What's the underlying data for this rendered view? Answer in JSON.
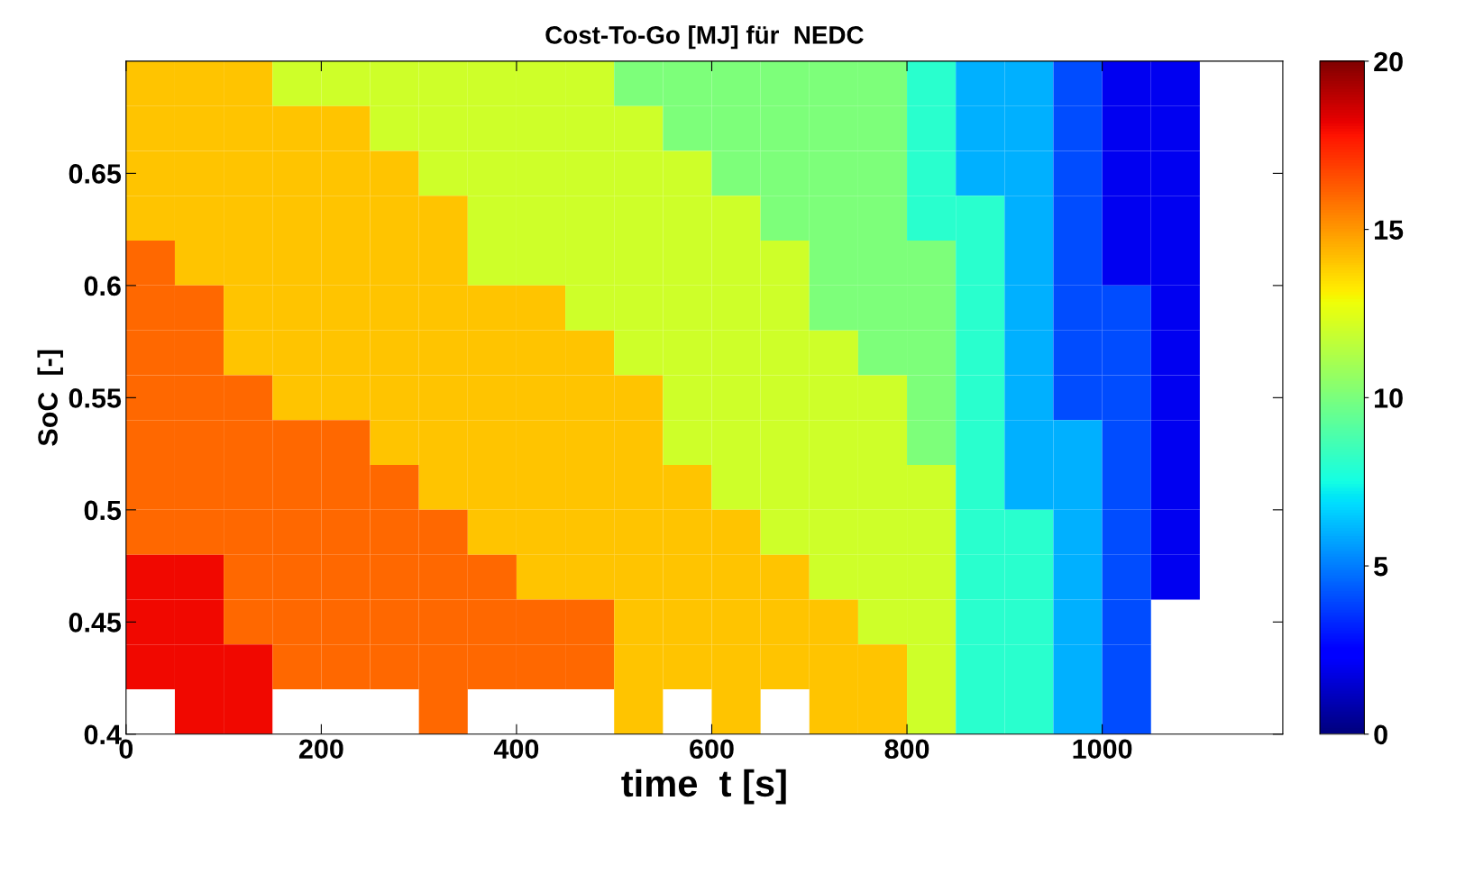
{
  "chart_data": {
    "type": "heatmap",
    "title": "Cost-To-Go [MJ] für  NEDC",
    "xlabel": "time  t [s]",
    "ylabel": "SoC  [-]",
    "x": [
      25,
      75,
      125,
      175,
      225,
      275,
      325,
      375,
      425,
      475,
      525,
      575,
      625,
      675,
      725,
      775,
      825,
      875,
      925,
      975,
      1025,
      1075,
      1125,
      1175
    ],
    "y": [
      0.69,
      0.67,
      0.65,
      0.63,
      0.61,
      0.59,
      0.57,
      0.55,
      0.53,
      0.51,
      0.49,
      0.47,
      0.45,
      0.43,
      0.41
    ],
    "cells": [
      [
        14,
        14,
        14,
        12,
        12,
        12,
        12,
        12,
        12,
        12,
        10,
        10,
        10,
        10,
        10,
        10,
        8,
        6,
        6,
        4,
        2,
        2,
        null,
        null
      ],
      [
        14,
        14,
        14,
        14,
        14,
        12,
        12,
        12,
        12,
        12,
        12,
        10,
        10,
        10,
        10,
        10,
        8,
        6,
        6,
        4,
        2,
        2,
        null,
        null
      ],
      [
        14,
        14,
        14,
        14,
        14,
        14,
        12,
        12,
        12,
        12,
        12,
        12,
        10,
        10,
        10,
        10,
        8,
        6,
        6,
        4,
        2,
        2,
        null,
        null
      ],
      [
        14,
        14,
        14,
        14,
        14,
        14,
        14,
        12,
        12,
        12,
        12,
        12,
        12,
        10,
        10,
        10,
        8,
        8,
        6,
        4,
        2,
        2,
        null,
        null
      ],
      [
        16,
        14,
        14,
        14,
        14,
        14,
        14,
        12,
        12,
        12,
        12,
        12,
        12,
        12,
        10,
        10,
        10,
        8,
        6,
        4,
        2,
        2,
        null,
        null
      ],
      [
        16,
        16,
        14,
        14,
        14,
        14,
        14,
        14,
        14,
        12,
        12,
        12,
        12,
        12,
        10,
        10,
        10,
        8,
        6,
        4,
        4,
        2,
        null,
        null
      ],
      [
        16,
        16,
        14,
        14,
        14,
        14,
        14,
        14,
        14,
        14,
        12,
        12,
        12,
        12,
        12,
        10,
        10,
        8,
        6,
        4,
        4,
        2,
        null,
        null
      ],
      [
        16,
        16,
        16,
        14,
        14,
        14,
        14,
        14,
        14,
        14,
        14,
        12,
        12,
        12,
        12,
        12,
        10,
        8,
        6,
        4,
        4,
        2,
        null,
        null
      ],
      [
        16,
        16,
        16,
        16,
        16,
        14,
        14,
        14,
        14,
        14,
        14,
        12,
        12,
        12,
        12,
        12,
        10,
        8,
        6,
        6,
        4,
        2,
        null,
        null
      ],
      [
        16,
        16,
        16,
        16,
        16,
        16,
        14,
        14,
        14,
        14,
        14,
        14,
        12,
        12,
        12,
        12,
        12,
        8,
        6,
        6,
        4,
        2,
        null,
        null
      ],
      [
        16,
        16,
        16,
        16,
        16,
        16,
        16,
        14,
        14,
        14,
        14,
        14,
        14,
        12,
        12,
        12,
        12,
        8,
        8,
        6,
        4,
        2,
        null,
        null
      ],
      [
        18,
        18,
        16,
        16,
        16,
        16,
        16,
        16,
        14,
        14,
        14,
        14,
        14,
        14,
        12,
        12,
        12,
        8,
        8,
        6,
        4,
        2,
        null,
        null
      ],
      [
        18,
        18,
        16,
        16,
        16,
        16,
        16,
        16,
        16,
        16,
        14,
        14,
        14,
        14,
        14,
        12,
        12,
        8,
        8,
        6,
        4,
        null,
        null,
        null
      ],
      [
        18,
        18,
        18,
        16,
        16,
        16,
        16,
        16,
        16,
        16,
        14,
        14,
        14,
        14,
        14,
        14,
        12,
        8,
        8,
        6,
        4,
        null,
        null,
        null
      ],
      [
        null,
        18,
        18,
        null,
        null,
        null,
        16,
        null,
        null,
        null,
        14,
        null,
        14,
        null,
        14,
        14,
        12,
        8,
        8,
        6,
        4,
        null,
        null,
        null
      ]
    ],
    "clim": [
      0,
      20
    ],
    "cticks": [
      0,
      5,
      10,
      15,
      20
    ],
    "xlim": [
      0,
      1185
    ],
    "ylim": [
      0.4,
      0.7
    ],
    "xticks": [
      0,
      200,
      400,
      600,
      800,
      1000
    ],
    "yticks": [
      0.4,
      0.45,
      0.5,
      0.55,
      0.6,
      0.65
    ]
  }
}
